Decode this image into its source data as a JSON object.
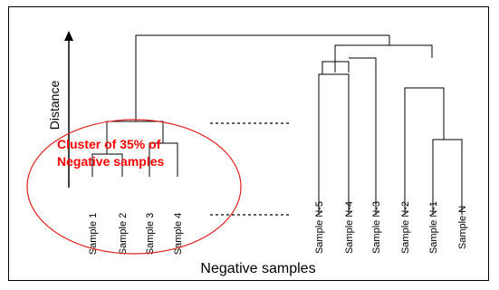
{
  "axis": {
    "label": "Distance"
  },
  "cluster_annotation": {
    "line1": "Cluster of 35% of",
    "line2": "Negative samples",
    "color": "#ff0000"
  },
  "left_samples": [
    "Sample 1",
    "Sample 2",
    "Sample 3",
    "Sample 4"
  ],
  "right_samples": [
    "Sample N-5",
    "Sample N-4",
    "Sample N-3",
    "Sample N-2",
    "Sample N-1",
    "Sample N"
  ],
  "caption": "Negative samples",
  "colors": {
    "tree": "#000000",
    "frame": "#000000",
    "cluster_outline": "#ff0000"
  }
}
